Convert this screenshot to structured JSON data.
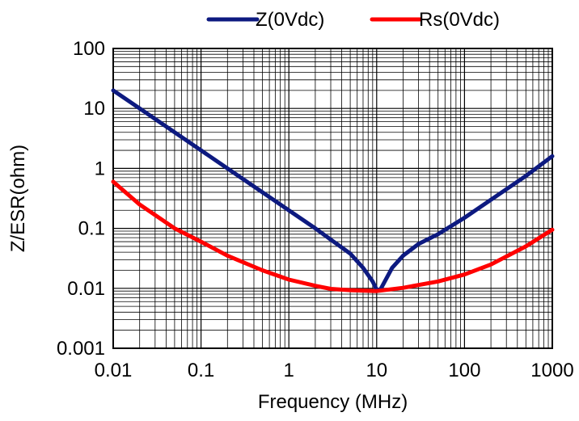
{
  "chart_data": {
    "type": "line",
    "xlabel": "Frequency (MHz)",
    "ylabel": "Z/ESR(ohm)",
    "x_scale": "log",
    "y_scale": "log",
    "xlim": [
      0.01,
      1000
    ],
    "ylim": [
      0.001,
      100
    ],
    "x_ticks": [
      "0.01",
      "0.1",
      "1",
      "10",
      "100",
      "1000"
    ],
    "y_ticks": [
      "0.001",
      "0.01",
      "0.1",
      "1",
      "10",
      "100"
    ],
    "grid": true,
    "legend_position": "top",
    "series": [
      {
        "name": "Z(0Vdc)",
        "color": "#0d1a80",
        "x": [
          0.01,
          0.02,
          0.05,
          0.1,
          0.2,
          0.5,
          1,
          2,
          3,
          5,
          7,
          9,
          10,
          11,
          12,
          15,
          20,
          30,
          50,
          100,
          200,
          500,
          1000
        ],
        "y": [
          20,
          10,
          4,
          2,
          1,
          0.4,
          0.2,
          0.1,
          0.065,
          0.038,
          0.022,
          0.013,
          0.0095,
          0.0095,
          0.012,
          0.022,
          0.035,
          0.055,
          0.08,
          0.15,
          0.3,
          0.75,
          1.6
        ]
      },
      {
        "name": "Rs(0Vdc)",
        "color": "#ff0000",
        "x": [
          0.01,
          0.02,
          0.05,
          0.1,
          0.2,
          0.5,
          1,
          2,
          3,
          5,
          10,
          20,
          50,
          100,
          200,
          500,
          1000
        ],
        "y": [
          0.6,
          0.25,
          0.1,
          0.06,
          0.035,
          0.02,
          0.014,
          0.011,
          0.0098,
          0.0093,
          0.009,
          0.0102,
          0.013,
          0.017,
          0.025,
          0.05,
          0.095
        ]
      }
    ]
  }
}
